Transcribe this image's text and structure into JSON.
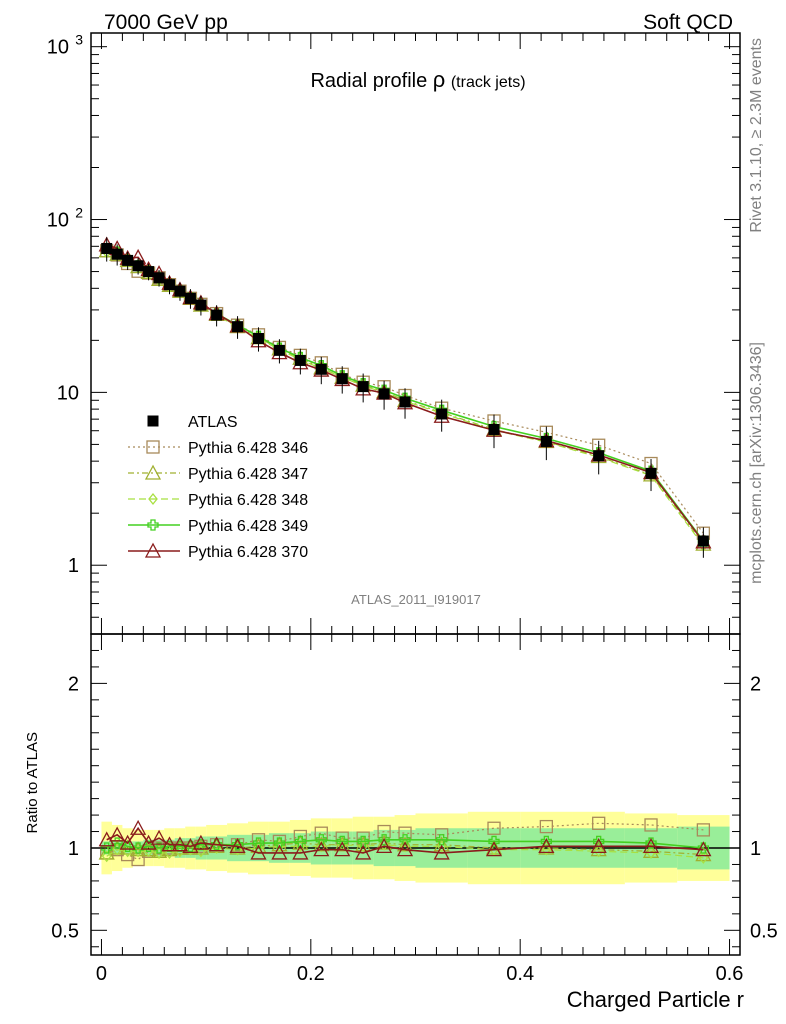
{
  "header": {
    "left": "7000 GeV pp",
    "right": "Soft QCD"
  },
  "side_labels": {
    "rivet": "Rivet 3.1.10, ≥ 2.3M events",
    "mcplots": "mcplots.cern.ch [arXiv:1306.3436]"
  },
  "chart_data": {
    "type": "line",
    "title": "Radial profile",
    "title_symbol": "ρ",
    "title_suffix": "(track jets)",
    "watermark": "ATLAS_2011_I919017",
    "xlabel": "Charged Particle r",
    "ratio_ylabel": "Ratio to ATLAS",
    "xlim": [
      -0.01,
      0.61
    ],
    "ylim": [
      0.4,
      1200
    ],
    "ylog": true,
    "ratio_ylim": [
      0.35,
      2.3
    ],
    "x_ticks": [
      "0",
      "0.2",
      "0.4",
      "0.6"
    ],
    "x_tick_values": [
      0,
      0.2,
      0.4,
      0.6
    ],
    "y_ticks": [
      "1",
      "10",
      "10^2",
      "10^3"
    ],
    "y_tick_values": [
      1,
      10,
      100,
      1000
    ],
    "ratio_ticks": [
      "0.5",
      "1",
      "2"
    ],
    "ratio_tick_values": [
      0.5,
      1,
      2
    ],
    "legend_position": "lower-left",
    "x": [
      0.005,
      0.015,
      0.025,
      0.035,
      0.045,
      0.055,
      0.065,
      0.075,
      0.085,
      0.095,
      0.11,
      0.13,
      0.15,
      0.17,
      0.19,
      0.21,
      0.23,
      0.25,
      0.27,
      0.29,
      0.325,
      0.375,
      0.425,
      0.475,
      0.525,
      0.575
    ],
    "band_edges": [
      0,
      0.01,
      0.02,
      0.03,
      0.04,
      0.05,
      0.06,
      0.07,
      0.08,
      0.09,
      0.1,
      0.12,
      0.14,
      0.16,
      0.18,
      0.2,
      0.22,
      0.24,
      0.26,
      0.28,
      0.3,
      0.35,
      0.4,
      0.45,
      0.5,
      0.55,
      0.6
    ],
    "data": {
      "name": "ATLAS",
      "values": [
        68,
        63,
        58,
        54,
        50,
        46,
        42,
        38.5,
        35,
        32,
        28,
        24,
        20.5,
        17.5,
        15.3,
        13.6,
        12.0,
        10.8,
        9.8,
        8.8,
        7.5,
        6.1,
        5.2,
        4.3,
        3.4,
        1.38
      ],
      "band_stat": [
        0.04,
        0.04,
        0.04,
        0.04,
        0.05,
        0.05,
        0.05,
        0.06,
        0.06,
        0.07,
        0.07,
        0.08,
        0.08,
        0.09,
        0.09,
        0.1,
        0.1,
        0.1,
        0.11,
        0.11,
        0.12,
        0.12,
        0.12,
        0.12,
        0.12,
        0.13
      ],
      "band_total": [
        0.16,
        0.14,
        0.12,
        0.11,
        0.11,
        0.11,
        0.12,
        0.12,
        0.13,
        0.13,
        0.14,
        0.15,
        0.16,
        0.16,
        0.17,
        0.18,
        0.18,
        0.19,
        0.19,
        0.2,
        0.21,
        0.22,
        0.22,
        0.22,
        0.21,
        0.2
      ]
    },
    "series": [
      {
        "name": "Pythia 6.428 346",
        "color": "#a88a5a",
        "marker": "square",
        "dash": "2,3",
        "ratio": [
          0.97,
          0.99,
          0.96,
          0.93,
          0.98,
          1.0,
          1.0,
          1.0,
          1.0,
          1.01,
          1.02,
          1.02,
          1.05,
          1.04,
          1.07,
          1.09,
          1.06,
          1.06,
          1.1,
          1.09,
          1.08,
          1.12,
          1.13,
          1.15,
          1.14,
          1.11
        ]
      },
      {
        "name": "Pythia 6.428 347",
        "color": "#a0b030",
        "marker": "triangle",
        "dash": "6,3,2,3",
        "ratio": [
          0.97,
          1.0,
          1.0,
          0.99,
          0.99,
          0.98,
          0.99,
          1.0,
          1.0,
          1.0,
          1.01,
          1.0,
          1.01,
          1.02,
          1.03,
          1.02,
          1.02,
          1.02,
          1.03,
          1.02,
          1.02,
          1.0,
          1.0,
          0.99,
          0.98,
          0.96
        ]
      },
      {
        "name": "Pythia 6.428 348",
        "color": "#a8e040",
        "marker": "diamond",
        "dash": "7,4",
        "ratio": [
          0.95,
          0.99,
          0.98,
          0.98,
          0.98,
          0.97,
          0.97,
          0.98,
          0.99,
          0.98,
          1.0,
          0.99,
          1.0,
          1.01,
          1.01,
          1.01,
          1.02,
          1.01,
          1.02,
          1.01,
          1.01,
          0.99,
          0.99,
          0.98,
          0.97,
          0.94
        ]
      },
      {
        "name": "Pythia 6.428 349",
        "color": "#44d020",
        "marker": "cross",
        "dash": "",
        "ratio": [
          1.0,
          1.03,
          1.01,
          1.0,
          1.01,
          1.0,
          1.01,
          1.01,
          1.01,
          1.02,
          1.02,
          1.02,
          1.03,
          1.03,
          1.04,
          1.05,
          1.04,
          1.04,
          1.05,
          1.05,
          1.05,
          1.04,
          1.04,
          1.04,
          1.03,
          1.0
        ]
      },
      {
        "name": "Pythia 6.428 370",
        "color": "#8a1c1c",
        "marker": "triangle",
        "dash": "",
        "ratio": [
          1.05,
          1.08,
          1.03,
          1.12,
          1.03,
          1.06,
          1.02,
          1.02,
          1.01,
          1.03,
          1.02,
          1.01,
          0.97,
          0.97,
          0.97,
          0.99,
          0.99,
          0.97,
          1.01,
          0.99,
          0.97,
          0.99,
          1.01,
          1.01,
          1.01,
          0.99
        ]
      }
    ]
  }
}
